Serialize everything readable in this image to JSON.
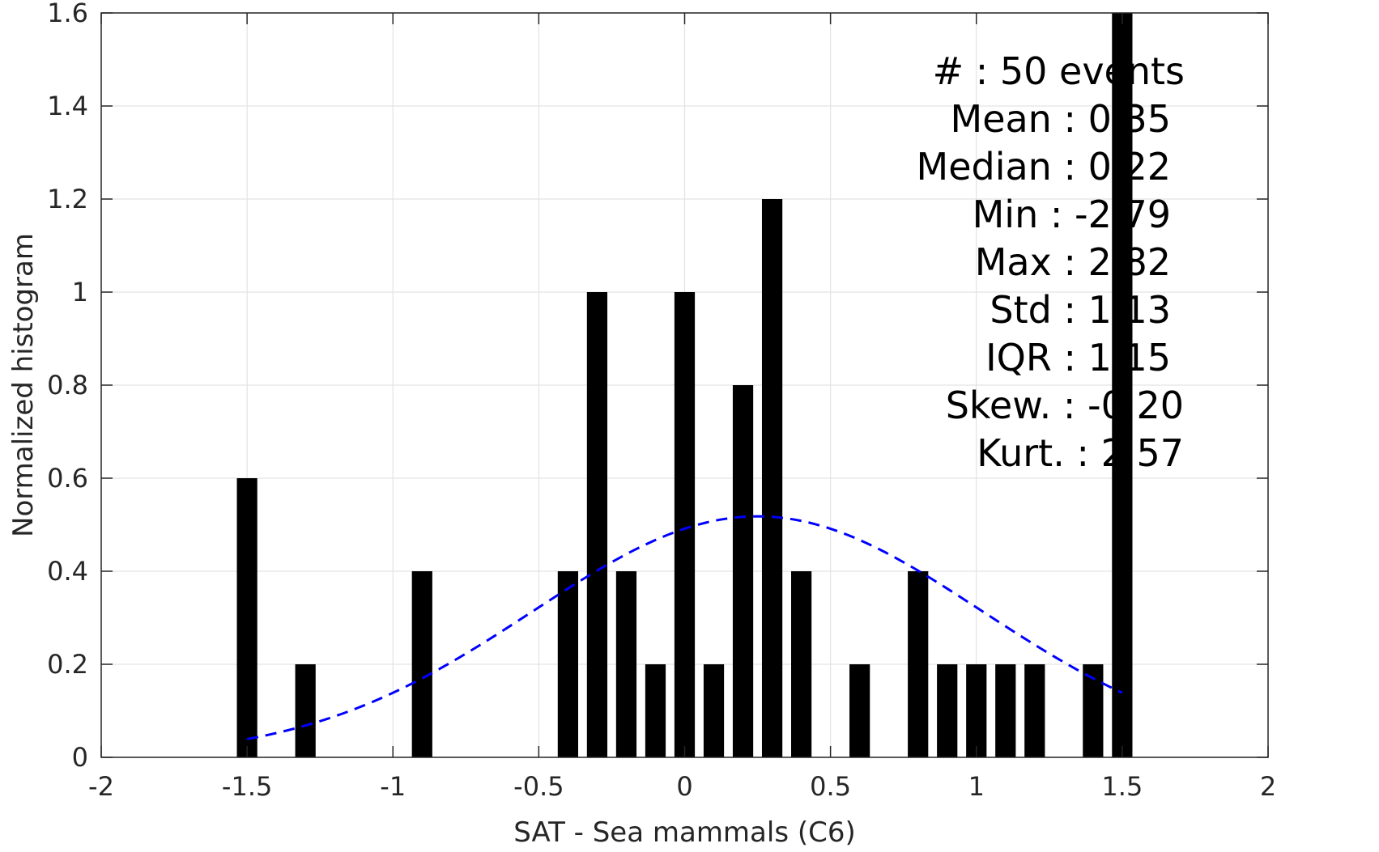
{
  "chart_data": {
    "type": "bar",
    "xlabel": "SAT - Sea mammals  (C6)",
    "ylabel": "Normalized histogram",
    "xlim": [
      -2,
      2
    ],
    "ylim": [
      0,
      1.6
    ],
    "xticks": [
      -2,
      -1.5,
      -1,
      -0.5,
      0,
      0.5,
      1,
      1.5,
      2
    ],
    "xtick_labels": [
      "-2",
      "-1.5",
      "-1",
      "-0.5",
      "0",
      "0.5",
      "1",
      "1.5",
      "2"
    ],
    "yticks": [
      0,
      0.2,
      0.4,
      0.6,
      0.8,
      1,
      1.2,
      1.4,
      1.6
    ],
    "ytick_labels": [
      "0",
      "0.2",
      "0.4",
      "0.6",
      "0.8",
      "1",
      "1.2",
      "1.4",
      "1.6"
    ],
    "grid": true,
    "bar_width": 0.07,
    "bars": [
      {
        "x": -1.5,
        "value": 0.6
      },
      {
        "x": -1.3,
        "value": 0.2
      },
      {
        "x": -0.9,
        "value": 0.4
      },
      {
        "x": -0.4,
        "value": 0.4
      },
      {
        "x": -0.3,
        "value": 1.0
      },
      {
        "x": -0.2,
        "value": 0.4
      },
      {
        "x": -0.1,
        "value": 0.2
      },
      {
        "x": 0.0,
        "value": 1.0
      },
      {
        "x": 0.1,
        "value": 0.2
      },
      {
        "x": 0.2,
        "value": 0.8
      },
      {
        "x": 0.3,
        "value": 1.2
      },
      {
        "x": 0.4,
        "value": 0.4
      },
      {
        "x": 0.6,
        "value": 0.2
      },
      {
        "x": 0.8,
        "value": 0.4
      },
      {
        "x": 0.9,
        "value": 0.2
      },
      {
        "x": 1.0,
        "value": 0.2
      },
      {
        "x": 1.1,
        "value": 0.2
      },
      {
        "x": 1.2,
        "value": 0.2
      },
      {
        "x": 1.4,
        "value": 0.2
      },
      {
        "x": 1.5,
        "value": 1.6
      }
    ],
    "fit_curve": {
      "style": "dashed",
      "color": "#0000ff",
      "mean": 0.25,
      "std": 0.77,
      "x_range": [
        -1.5,
        1.5
      ]
    },
    "bar_color": "#000000",
    "stats_lines": [
      "#  : 50 events",
      "Mean : 0.35",
      "Median : 0.22",
      "Min : -2.79",
      "Max : 2.82",
      "Std : 1.13",
      "IQR : 1.15",
      "Skew. : -0.20",
      "Kurt. : 2.57"
    ]
  }
}
